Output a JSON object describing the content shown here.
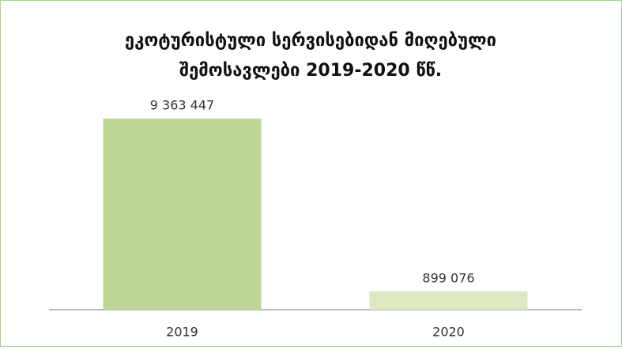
{
  "chart_data": {
    "type": "bar",
    "title": "ეკოტურისტული სერვისებიდან მიღებული\nშემოსავლები 2019-2020 წწ.",
    "categories": [
      "2019",
      "2020"
    ],
    "values": [
      9363447,
      899076
    ],
    "value_labels": [
      "9 363 447",
      "899 076"
    ],
    "colors": [
      "#bdd796",
      "#dbe8c0"
    ]
  }
}
